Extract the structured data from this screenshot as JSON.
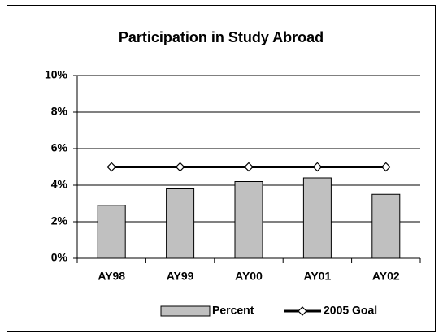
{
  "chart_data": {
    "type": "bar",
    "title": "Participation in Study Abroad",
    "categories": [
      "AY98",
      "AY99",
      "AY00",
      "AY01",
      "AY02"
    ],
    "series": [
      {
        "name": "Percent",
        "type": "bar",
        "color": "#c0c0c0",
        "values": [
          2.9,
          3.8,
          4.2,
          4.4,
          3.5
        ]
      },
      {
        "name": "2005 Goal",
        "type": "line",
        "color": "#000000",
        "values": [
          5,
          5,
          5,
          5,
          5
        ]
      }
    ],
    "ylim": [
      0,
      10
    ],
    "yticks": [
      {
        "value": 0,
        "label": "0%"
      },
      {
        "value": 2,
        "label": "2%"
      },
      {
        "value": 4,
        "label": "4%"
      },
      {
        "value": 6,
        "label": "6%"
      },
      {
        "value": 8,
        "label": "8%"
      },
      {
        "value": 10,
        "label": "10%"
      }
    ],
    "grid": true,
    "legend": "bottom"
  }
}
